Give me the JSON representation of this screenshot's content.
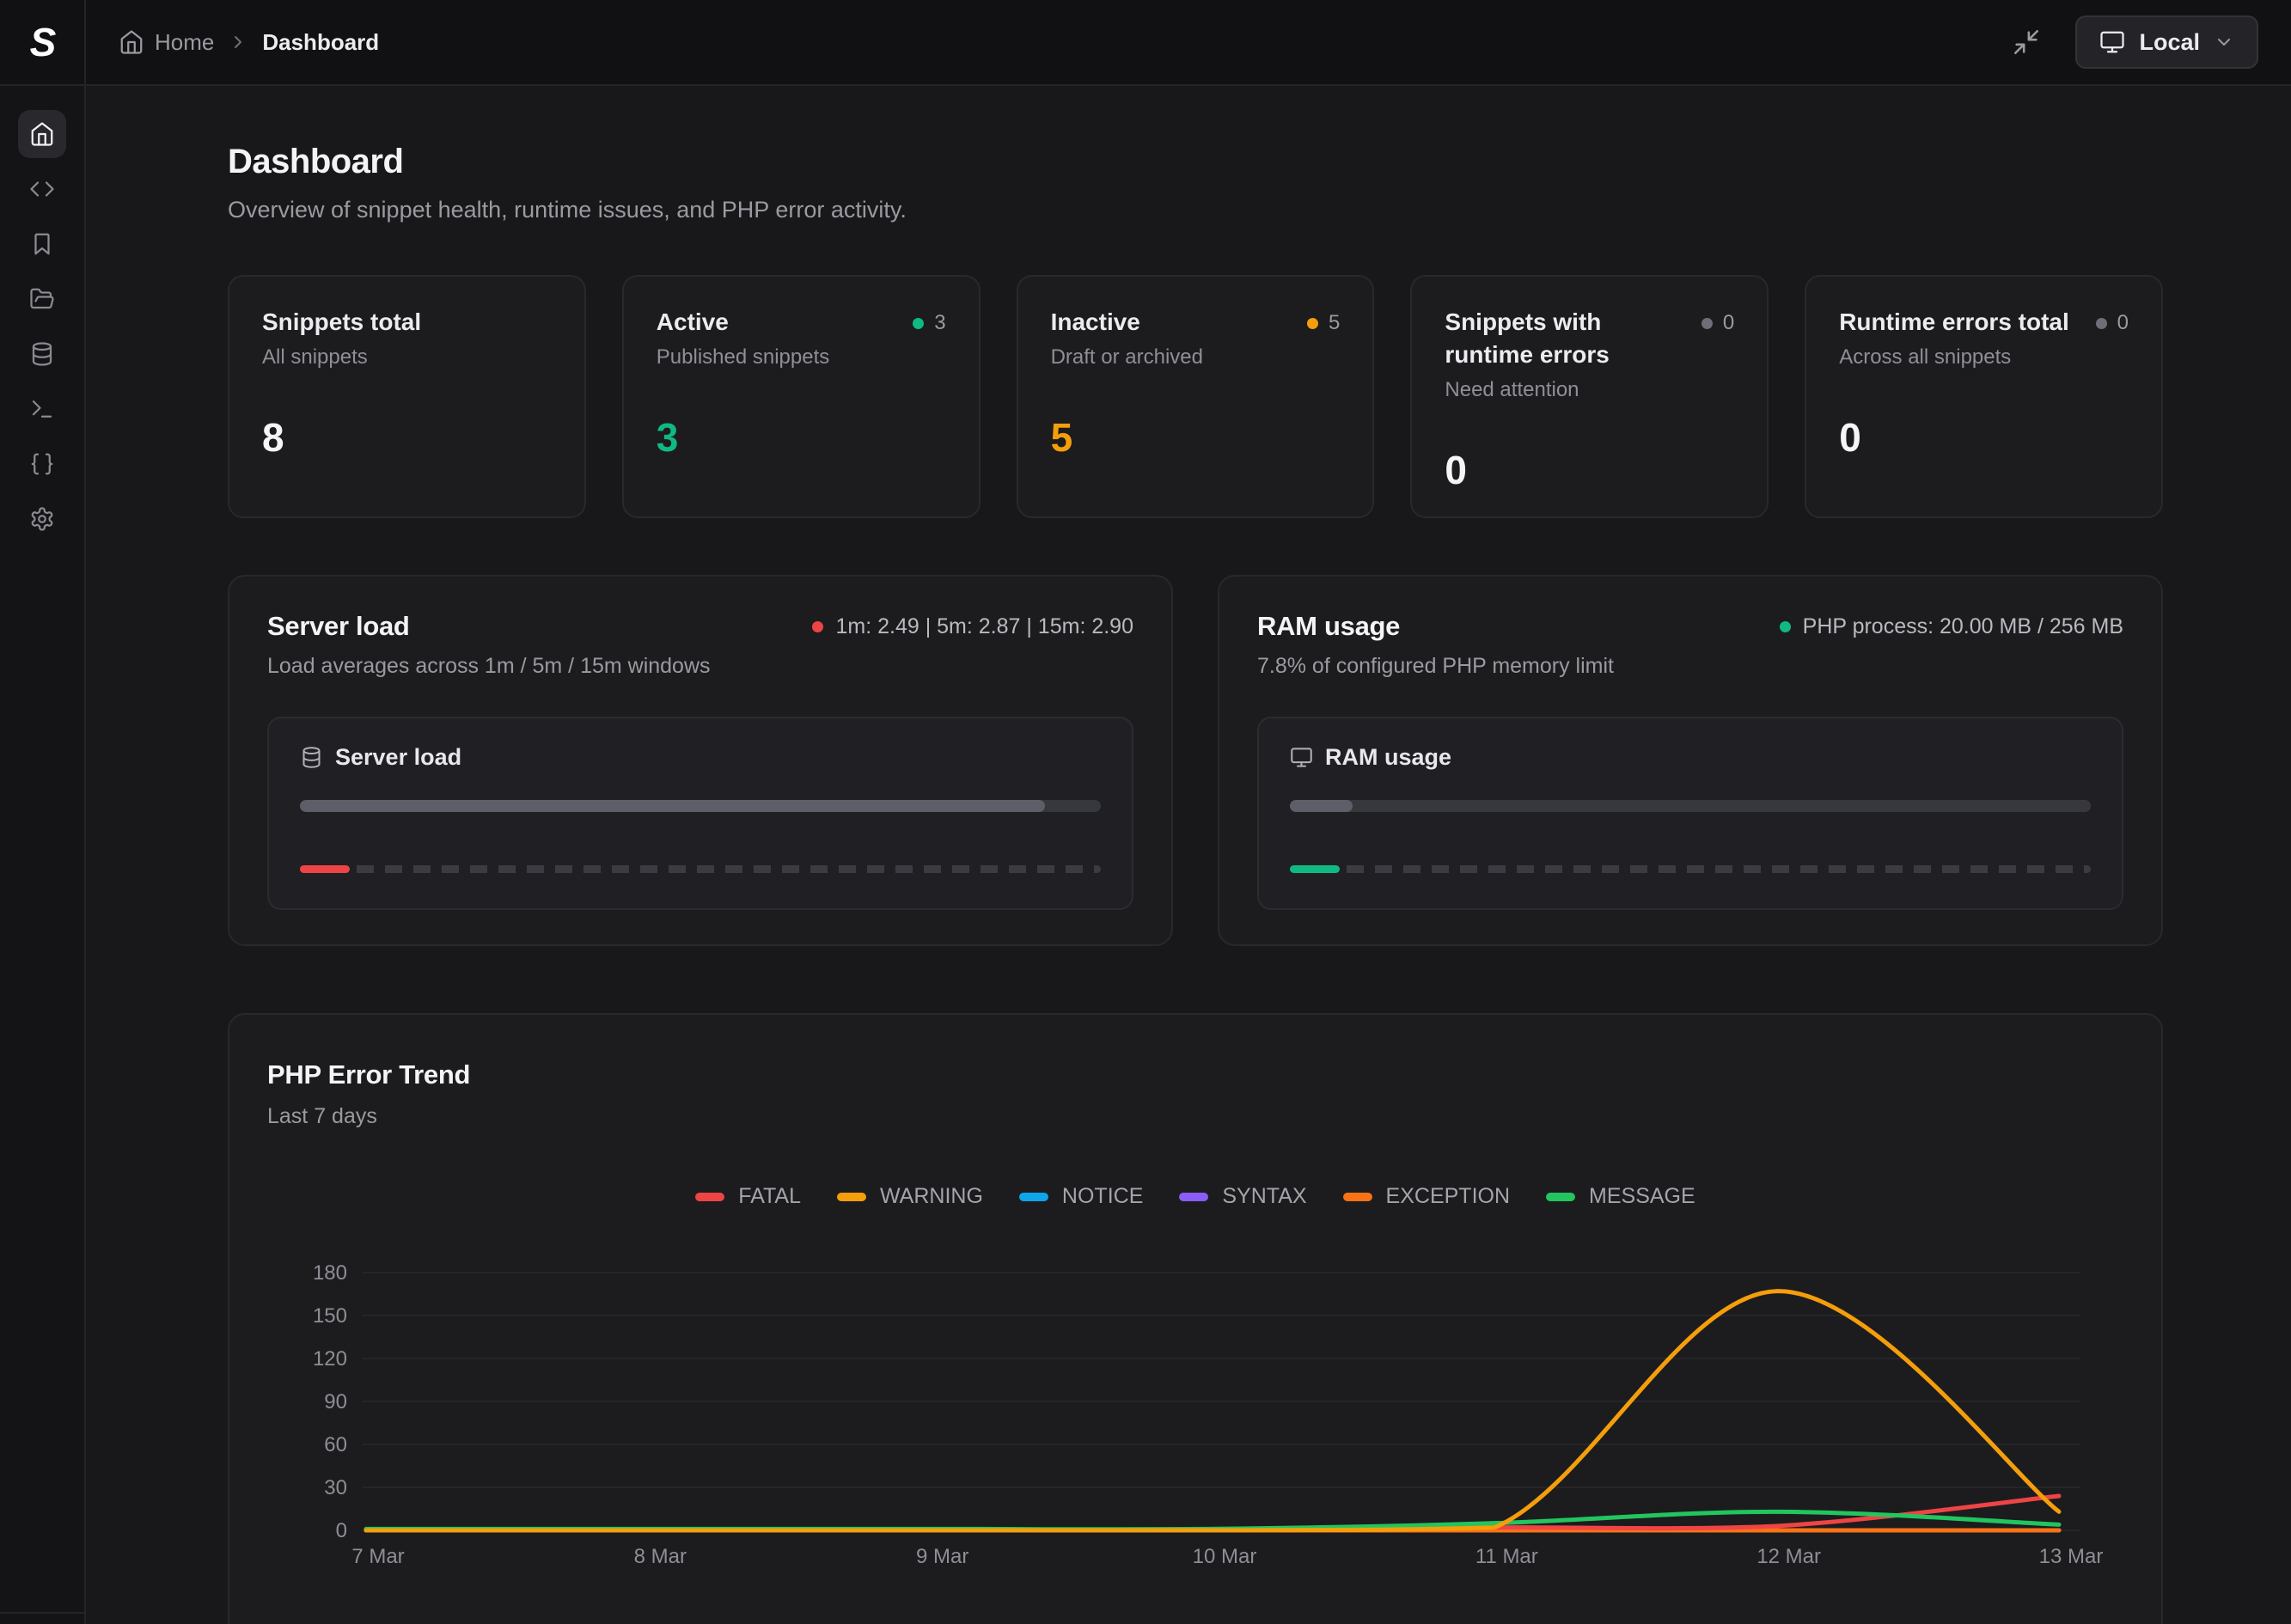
{
  "topbar": {
    "logo": "S",
    "breadcrumb": {
      "home": "Home",
      "current": "Dashboard"
    },
    "env_button": {
      "label": "Local"
    }
  },
  "sidebar": {
    "items": [
      "home",
      "code-snippets",
      "bookmarks",
      "folders",
      "database",
      "terminal",
      "variables",
      "settings"
    ],
    "active_item": "home"
  },
  "page": {
    "title": "Dashboard",
    "subtitle": "Overview of snippet health, runtime issues, and PHP error activity."
  },
  "stats": [
    {
      "title": "Snippets total",
      "subtitle": "All snippets",
      "value": "8",
      "value_color": "#f5f5f7",
      "badge": null
    },
    {
      "title": "Active",
      "subtitle": "Published snippets",
      "value": "3",
      "value_color": "#10b981",
      "badge": {
        "count": "3",
        "color": "#10b981"
      }
    },
    {
      "title": "Inactive",
      "subtitle": "Draft or archived",
      "value": "5",
      "value_color": "#f59e0b",
      "badge": {
        "count": "5",
        "color": "#f59e0b"
      }
    },
    {
      "title": "Snippets with runtime errors",
      "subtitle": "Need attention",
      "value": "0",
      "value_color": "#f5f5f7",
      "badge": {
        "count": "0",
        "color": "#6e6e78"
      }
    },
    {
      "title": "Runtime errors total",
      "subtitle": "Across all snippets",
      "value": "0",
      "value_color": "#f5f5f7",
      "badge": {
        "count": "0",
        "color": "#6e6e78"
      }
    }
  ],
  "server_load": {
    "title": "Server load",
    "subtitle": "Load averages across 1m / 5m / 15m windows",
    "status": "1m: 2.49 | 5m: 2.87 | 15m: 2.90",
    "status_color": "#ef4444",
    "panel_label": "Server load",
    "progress_pct": 93,
    "marker_color": "#ef4444"
  },
  "ram": {
    "title": "RAM usage",
    "subtitle": "7.8% of configured PHP memory limit",
    "status": "PHP process: 20.00 MB / 256 MB",
    "status_color": "#10b981",
    "panel_label": "RAM usage",
    "progress_pct": 7.8,
    "marker_color": "#10b981"
  },
  "chart_card": {
    "title": "PHP Error Trend",
    "subtitle": "Last 7 days"
  },
  "chart_data": {
    "type": "line",
    "title": "PHP Error Trend",
    "x": [
      "7 Mar",
      "8 Mar",
      "9 Mar",
      "10 Mar",
      "11 Mar",
      "12 Mar",
      "13 Mar"
    ],
    "series": [
      {
        "name": "FATAL",
        "color": "#ef4444",
        "values": [
          0,
          0,
          0,
          1,
          2,
          3,
          24
        ]
      },
      {
        "name": "WARNING",
        "color": "#f59e0b",
        "values": [
          0,
          0,
          0,
          0,
          2,
          167,
          13
        ]
      },
      {
        "name": "NOTICE",
        "color": "#0ea5e9",
        "values": [
          0,
          0,
          0,
          0,
          0,
          0,
          0
        ]
      },
      {
        "name": "SYNTAX",
        "color": "#8b5cf6",
        "values": [
          0,
          0,
          0,
          0,
          0,
          0,
          0
        ]
      },
      {
        "name": "EXCEPTION",
        "color": "#f97316",
        "values": [
          0,
          0,
          0,
          0,
          0,
          0,
          0
        ]
      },
      {
        "name": "MESSAGE",
        "color": "#22c55e",
        "values": [
          1,
          1,
          1,
          1,
          5,
          13,
          4
        ]
      }
    ],
    "ylim": [
      0,
      180
    ],
    "yticks": [
      0,
      30,
      60,
      90,
      120,
      150,
      180
    ],
    "grid": true,
    "legend_position": "top-center"
  }
}
